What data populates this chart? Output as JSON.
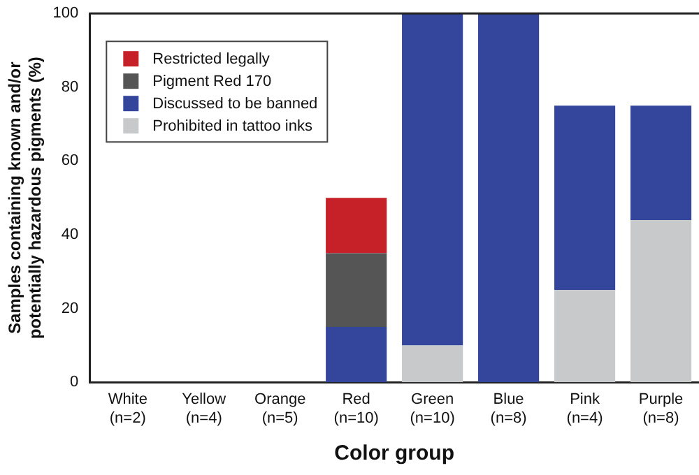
{
  "chart_data": {
    "type": "bar",
    "stacked": true,
    "xlabel": "Color group",
    "ylabel": "Samples containing known and/or\npotentially hazardous pigments (%)",
    "categories": [
      "White\n(n=2)",
      "Yellow\n(n=4)",
      "Orange\n(n=5)",
      "Red\n(n=10)",
      "Green\n(n=10)",
      "Blue\n(n=8)",
      "Pink\n(n=4)",
      "Purple\n(n=8)"
    ],
    "series": [
      {
        "name": "Prohibited in tattoo inks",
        "color": "#c8c9cb",
        "values": [
          0,
          0,
          0,
          0,
          10,
          0,
          25,
          44
        ]
      },
      {
        "name": "Discussed to be banned",
        "color": "#34469c",
        "values": [
          0,
          0,
          0,
          15,
          90,
          100,
          50,
          31
        ]
      },
      {
        "name": "Pigment Red 170",
        "color": "#555556",
        "values": [
          0,
          0,
          0,
          20,
          0,
          0,
          0,
          0
        ]
      },
      {
        "name": "Restricted legally",
        "color": "#c62128",
        "values": [
          0,
          0,
          0,
          15,
          0,
          0,
          0,
          0
        ]
      }
    ],
    "ylim": [
      0,
      100
    ],
    "yticks": [
      0,
      20,
      40,
      60,
      80,
      100
    ],
    "grid": false,
    "legend": "top left"
  }
}
